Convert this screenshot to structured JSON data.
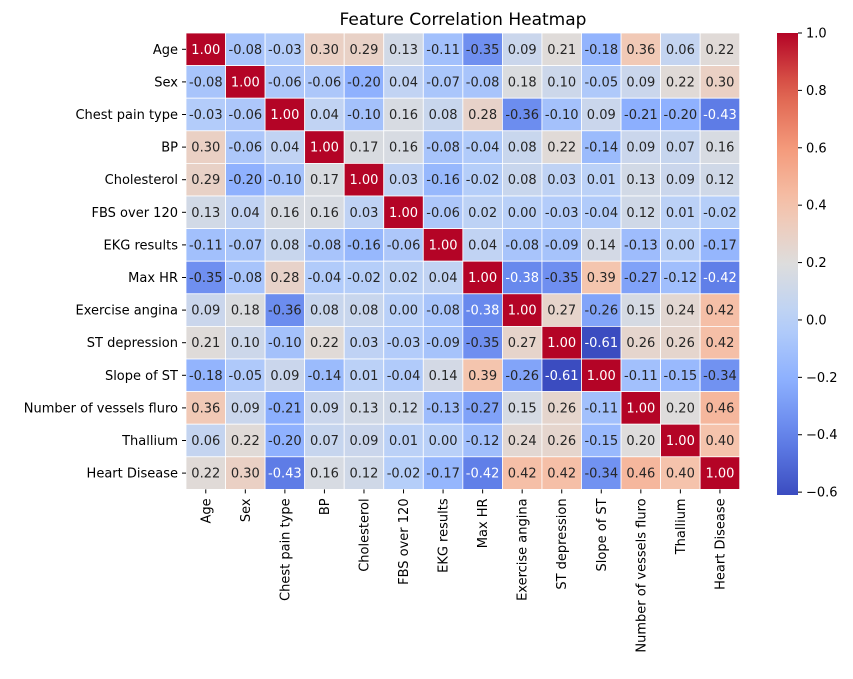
{
  "chart_data": {
    "type": "heatmap",
    "title": "Feature Correlation Heatmap",
    "xlabel": "",
    "ylabel": "",
    "labels": [
      "Age",
      "Sex",
      "Chest pain type",
      "BP",
      "Cholesterol",
      "FBS over 120",
      "EKG results",
      "Max HR",
      "Exercise angina",
      "ST depression",
      "Slope of ST",
      "Number of vessels fluro",
      "Thallium",
      "Heart Disease"
    ],
    "matrix": [
      [
        1.0,
        -0.08,
        -0.03,
        0.3,
        0.29,
        0.13,
        -0.11,
        -0.35,
        0.09,
        0.21,
        -0.18,
        0.36,
        0.06,
        0.22
      ],
      [
        -0.08,
        1.0,
        -0.06,
        -0.06,
        -0.2,
        0.04,
        -0.07,
        -0.08,
        0.18,
        0.1,
        -0.05,
        0.09,
        0.22,
        0.3
      ],
      [
        -0.03,
        -0.06,
        1.0,
        0.04,
        -0.1,
        0.16,
        0.08,
        0.28,
        -0.36,
        -0.1,
        0.09,
        -0.21,
        -0.2,
        -0.43
      ],
      [
        0.3,
        -0.06,
        0.04,
        1.0,
        0.17,
        0.16,
        -0.08,
        -0.04,
        0.08,
        0.22,
        -0.14,
        0.09,
        0.07,
        0.16
      ],
      [
        0.29,
        -0.2,
        -0.1,
        0.17,
        1.0,
        0.03,
        -0.16,
        -0.02,
        0.08,
        0.03,
        0.01,
        0.13,
        0.09,
        0.12
      ],
      [
        0.13,
        0.04,
        0.16,
        0.16,
        0.03,
        1.0,
        -0.06,
        0.02,
        -0.0,
        -0.03,
        -0.04,
        0.12,
        0.01,
        -0.02
      ],
      [
        -0.11,
        -0.07,
        0.08,
        -0.08,
        -0.16,
        -0.06,
        1.0,
        0.04,
        -0.08,
        -0.09,
        0.14,
        -0.13,
        -0.0,
        -0.17
      ],
      [
        -0.35,
        -0.08,
        0.28,
        -0.04,
        -0.02,
        0.02,
        0.04,
        1.0,
        -0.38,
        -0.35,
        0.39,
        -0.27,
        -0.12,
        -0.42
      ],
      [
        0.09,
        0.18,
        -0.36,
        0.08,
        0.08,
        -0.0,
        -0.08,
        -0.38,
        1.0,
        0.27,
        -0.26,
        0.15,
        0.24,
        0.42
      ],
      [
        0.21,
        0.1,
        -0.1,
        0.22,
        0.03,
        -0.03,
        -0.09,
        -0.35,
        0.27,
        1.0,
        -0.61,
        0.26,
        0.26,
        0.42
      ],
      [
        -0.18,
        -0.05,
        0.09,
        -0.14,
        0.01,
        -0.04,
        0.14,
        0.39,
        -0.26,
        -0.61,
        1.0,
        -0.11,
        -0.15,
        -0.34
      ],
      [
        0.36,
        0.09,
        -0.21,
        0.09,
        0.13,
        0.12,
        -0.13,
        -0.27,
        0.15,
        0.26,
        -0.11,
        1.0,
        0.2,
        0.46
      ],
      [
        0.06,
        0.22,
        -0.2,
        0.07,
        0.09,
        0.01,
        -0.0,
        -0.12,
        0.24,
        0.26,
        -0.15,
        0.2,
        1.0,
        0.4
      ],
      [
        0.22,
        0.3,
        -0.43,
        0.16,
        0.12,
        -0.02,
        -0.17,
        -0.42,
        0.42,
        0.42,
        -0.34,
        0.46,
        0.4,
        1.0
      ]
    ],
    "colormap": "coolwarm",
    "value_range": [
      -0.61,
      1.0
    ],
    "colorbar": {
      "ticks": [
        1.0,
        0.8,
        0.6,
        0.4,
        0.2,
        0.0,
        -0.2,
        -0.4,
        -0.6
      ],
      "tick_labels": [
        "1.0",
        "0.8",
        "0.6",
        "0.4",
        "0.2",
        "0.0",
        "−0.2",
        "−0.4",
        "−0.6"
      ]
    },
    "grid": false,
    "cell_border_color": "#ffffff"
  }
}
